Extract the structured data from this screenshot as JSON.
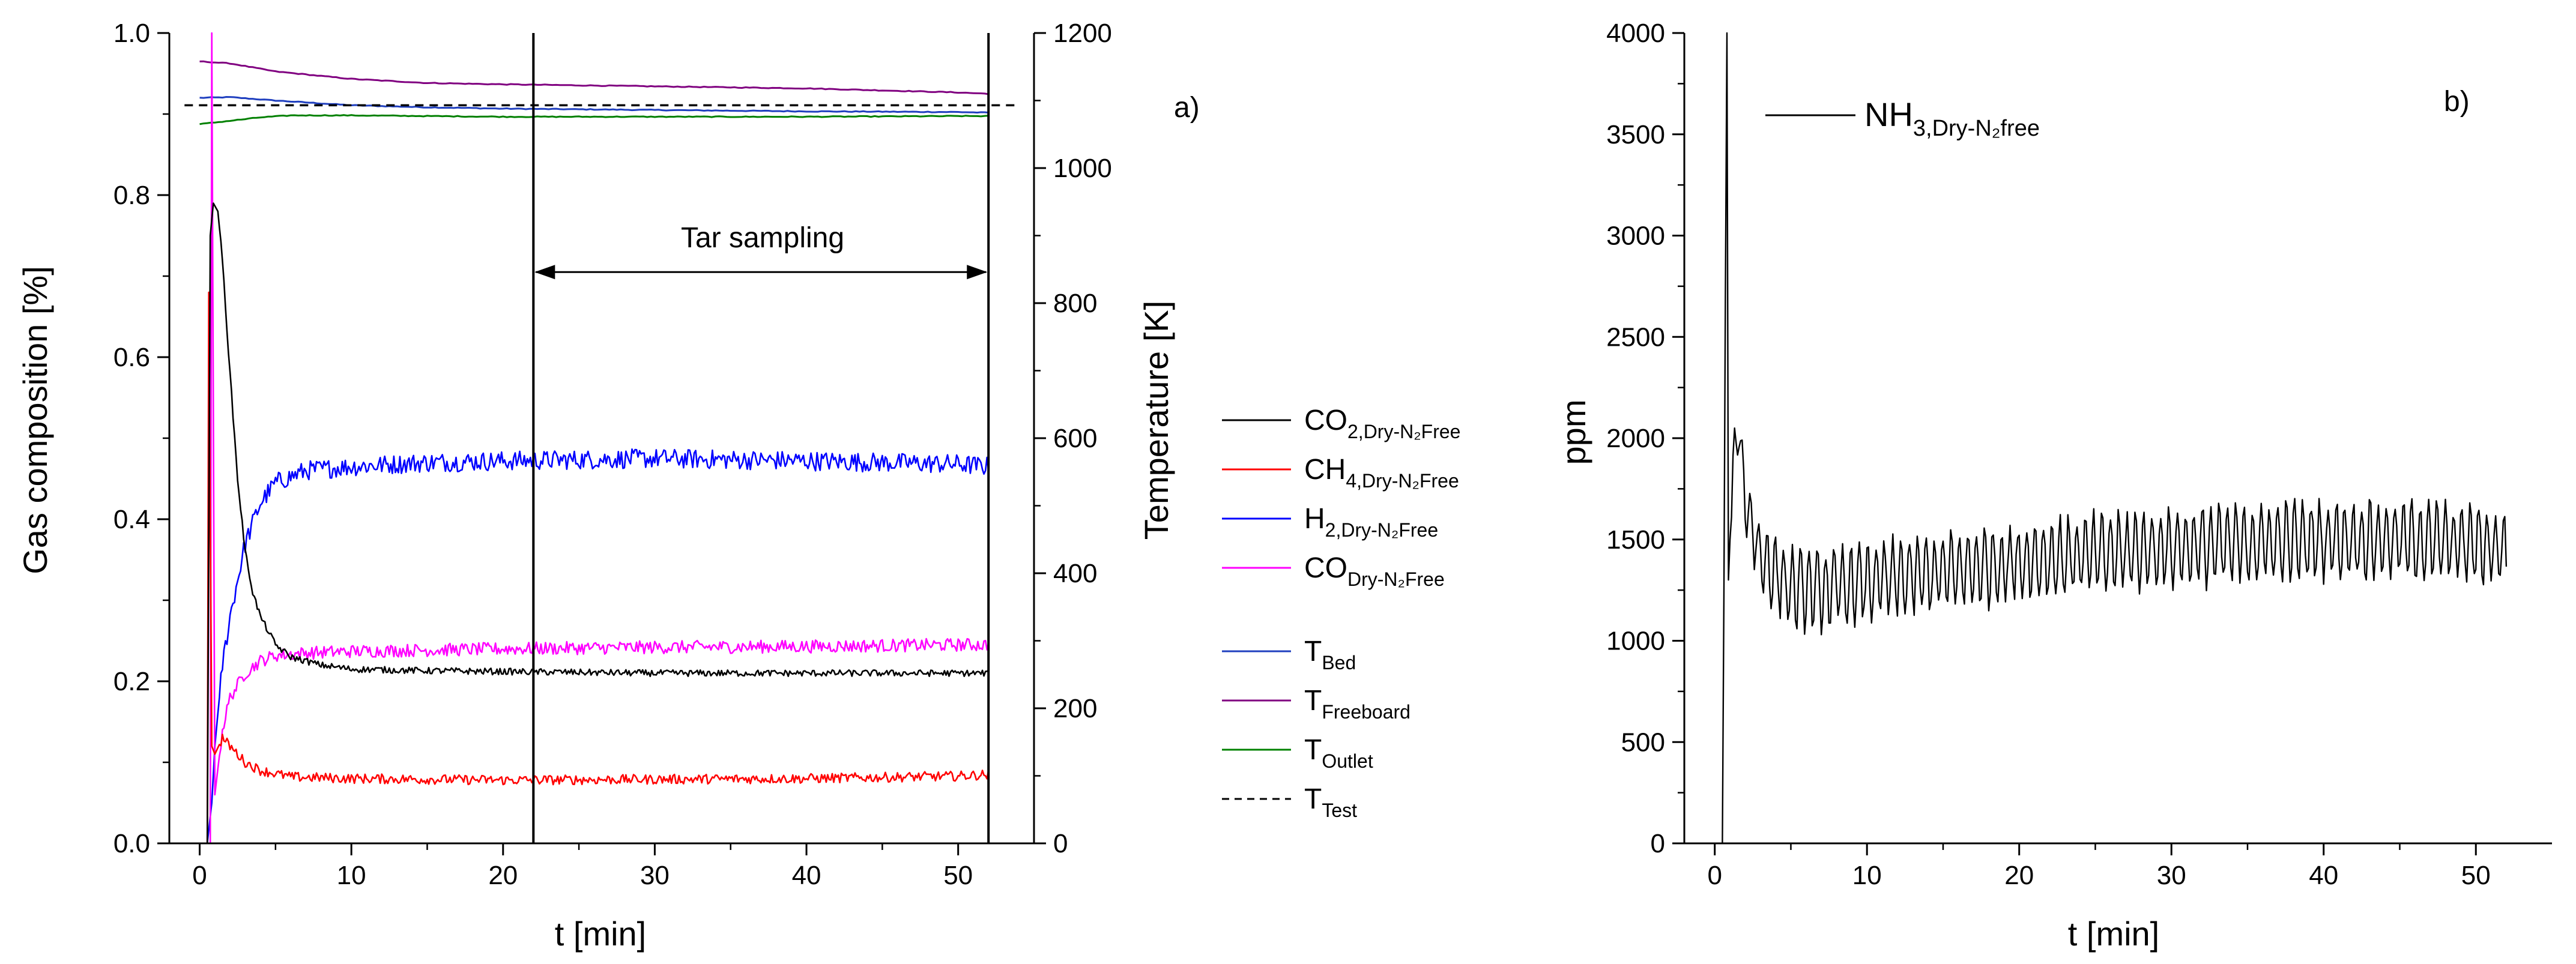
{
  "chart_data": [
    {
      "panel": "a)",
      "type": "line",
      "xlabel": "t [min]",
      "ylabel_left": "Gas composition [%]",
      "ylabel_right": "Temperature [K]",
      "xlim": [
        -2,
        55
      ],
      "ylim_left": [
        0,
        1.0
      ],
      "ylim_right": [
        0,
        1200
      ],
      "x_ticks": [
        0,
        10,
        20,
        30,
        40,
        50
      ],
      "y_left_ticks": [
        "0.0",
        "0.2",
        "0.4",
        "0.6",
        "0.8",
        "1.0"
      ],
      "y_right_ticks": [
        "0",
        "200",
        "400",
        "600",
        "800",
        "1000",
        "1200"
      ],
      "legend_gas": [
        {
          "base": "CO",
          "sub": "2,Dry-N₂Free",
          "color": "#000000",
          "series": "CO2"
        },
        {
          "base": "CH",
          "sub": "4,Dry-N₂Free",
          "color": "#ff0000",
          "series": "CH4"
        },
        {
          "base": "H",
          "sub": "2,Dry-N₂Free",
          "color": "#0000ff",
          "series": "H2"
        },
        {
          "base": "CO",
          "sub": "Dry-N₂Free",
          "color": "#ff00ff",
          "series": "CO"
        }
      ],
      "legend_temp": [
        {
          "base": "T",
          "sub": "Bed",
          "color": "#1f3fbf",
          "dashed": false
        },
        {
          "base": "T",
          "sub": "Freeboard",
          "color": "#800080",
          "dashed": false
        },
        {
          "base": "T",
          "sub": "Outlet",
          "color": "#008000",
          "dashed": false
        },
        {
          "base": "T",
          "sub": "Test",
          "color": "#000000",
          "dashed": true
        }
      ],
      "gas_series": {
        "CO2": {
          "t": [
            0.5,
            0.7,
            0.9,
            1.2,
            1.5,
            2,
            2.5,
            3,
            3.5,
            4,
            5,
            6,
            8,
            10,
            15,
            20,
            25,
            30,
            35,
            40,
            45,
            50,
            52
          ],
          "y": [
            0.0,
            0.75,
            0.79,
            0.78,
            0.72,
            0.58,
            0.45,
            0.36,
            0.31,
            0.28,
            0.245,
            0.23,
            0.22,
            0.215,
            0.213,
            0.212,
            0.211,
            0.21,
            0.21,
            0.21,
            0.21,
            0.21,
            0.21
          ],
          "noise": 0.004
        },
        "CH4": {
          "t": [
            0.5,
            0.6,
            0.8,
            1.0,
            1.5,
            2,
            3,
            4,
            6,
            10,
            20,
            30,
            40,
            50,
            52
          ],
          "y": [
            0.0,
            0.68,
            0.12,
            0.11,
            0.13,
            0.12,
            0.1,
            0.09,
            0.082,
            0.08,
            0.078,
            0.079,
            0.08,
            0.083,
            0.085
          ],
          "noise": 0.006
        },
        "H2": {
          "t": [
            0.5,
            0.8,
            1.0,
            1.5,
            2,
            3,
            4,
            5,
            7,
            10,
            15,
            20,
            30,
            40,
            50,
            52
          ],
          "y": [
            0.0,
            0.05,
            0.12,
            0.22,
            0.28,
            0.37,
            0.42,
            0.445,
            0.46,
            0.465,
            0.47,
            0.472,
            0.475,
            0.472,
            0.468,
            0.465
          ],
          "noise": 0.012
        },
        "CO": {
          "t": [
            0.5,
            0.7,
            0.8,
            1.0,
            1.5,
            2,
            3,
            4,
            5,
            7,
            10,
            20,
            30,
            40,
            50,
            52
          ],
          "y": [
            0.0,
            0.0,
            1.0,
            0.06,
            0.14,
            0.18,
            0.21,
            0.225,
            0.232,
            0.235,
            0.237,
            0.24,
            0.242,
            0.243,
            0.245,
            0.245
          ],
          "noise": 0.008
        }
      },
      "temp_series": {
        "T_Bed": {
          "t": [
            0,
            2,
            5,
            10,
            15,
            20,
            30,
            40,
            50,
            52
          ],
          "y": [
            1104,
            1105,
            1100,
            1093,
            1090,
            1088,
            1086,
            1084,
            1083,
            1082
          ]
        },
        "T_Freeboard": {
          "t": [
            0,
            2,
            5,
            10,
            15,
            20,
            30,
            40,
            50,
            52
          ],
          "y": [
            1158,
            1155,
            1143,
            1132,
            1126,
            1124,
            1121,
            1118,
            1112,
            1110
          ]
        },
        "T_Outlet": {
          "t": [
            0,
            2,
            4,
            6,
            10,
            15,
            20,
            30,
            40,
            50,
            52
          ],
          "y": [
            1065,
            1070,
            1075,
            1078,
            1078,
            1077,
            1076,
            1076,
            1076,
            1077,
            1077
          ]
        },
        "T_Test": {
          "t": [
            -1,
            54
          ],
          "y": [
            1093,
            1093
          ]
        }
      },
      "vertical_lines": [
        22,
        52
      ],
      "annotation": {
        "text": "Tar sampling",
        "from": 22,
        "to": 52,
        "y": 0.705
      }
    },
    {
      "panel": "b)",
      "type": "line",
      "xlabel": "t [min]",
      "ylabel": "ppm",
      "xlim": [
        -2,
        55
      ],
      "ylim": [
        0,
        4000
      ],
      "x_ticks": [
        0,
        10,
        20,
        30,
        40,
        50
      ],
      "y_ticks": [
        "0",
        "500",
        "1000",
        "1500",
        "2000",
        "2500",
        "3000",
        "3500",
        "4000"
      ],
      "legend": [
        {
          "base": "NH",
          "sub": "3,Dry-N₂free",
          "color": "#000000"
        }
      ],
      "series": {
        "NH3": {
          "t": [
            0.5,
            0.6,
            0.7,
            0.8,
            0.9,
            1.0,
            1.2,
            1.5,
            2,
            2.5,
            3,
            4,
            5,
            7,
            10,
            15,
            20,
            25,
            30,
            35,
            40,
            45,
            50,
            52
          ],
          "y": [
            0,
            1200,
            2700,
            4000,
            1300,
            1500,
            1800,
            2100,
            1700,
            1550,
            1420,
            1330,
            1260,
            1250,
            1290,
            1340,
            1390,
            1430,
            1460,
            1480,
            1500,
            1500,
            1480,
            1450
          ],
          "noise": 180
        }
      }
    }
  ]
}
